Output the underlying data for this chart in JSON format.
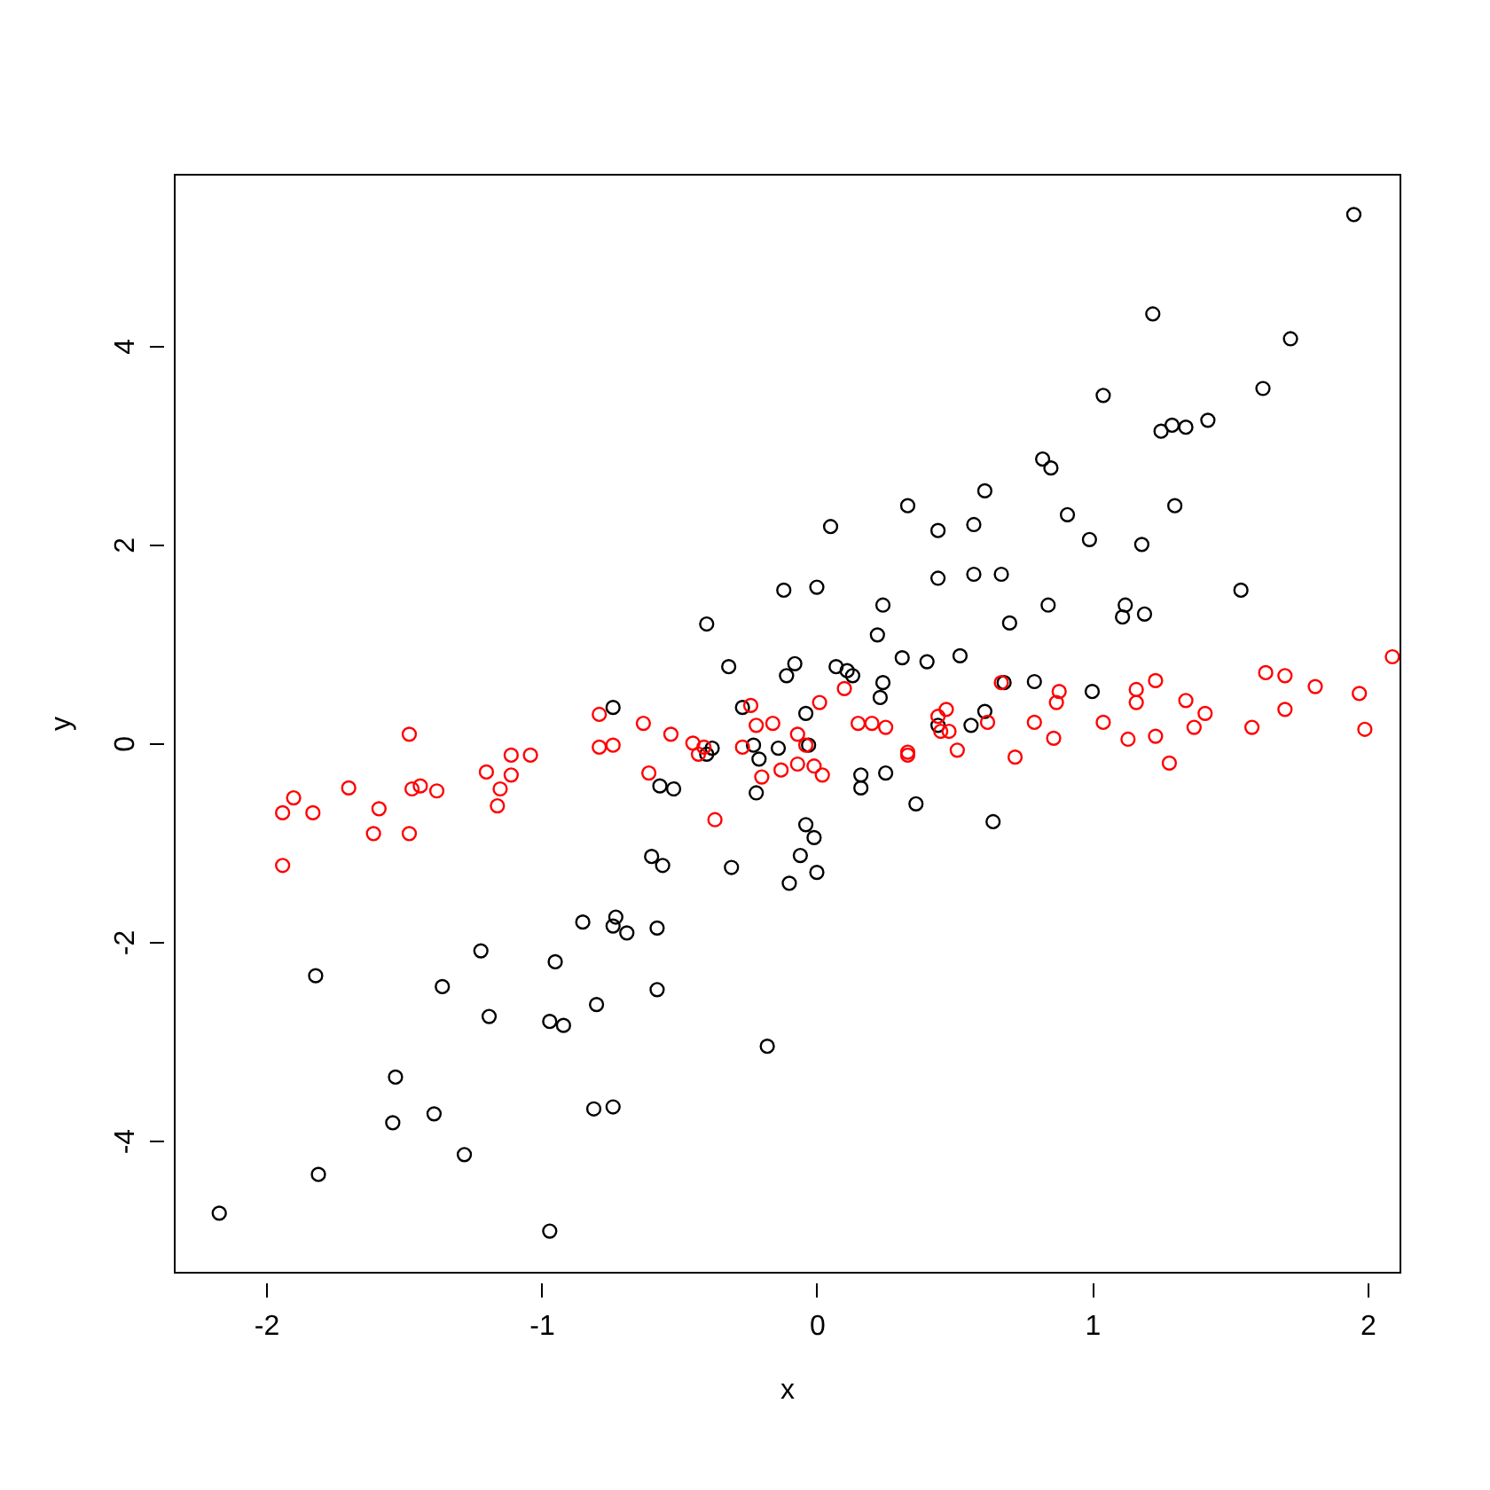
{
  "chart_data": {
    "type": "scatter",
    "xlabel": "x",
    "ylabel": "y",
    "xlim": [
      -2.335,
      2.116
    ],
    "ylim": [
      -5.32,
      5.73
    ],
    "xticks": [
      -2,
      -1,
      0,
      1,
      2
    ],
    "yticks": [
      -4,
      -2,
      0,
      2,
      4
    ],
    "grid": false,
    "marker": "circle",
    "series": [
      {
        "color": "#000000",
        "x": [
          -2.17,
          -1.81,
          -1.82,
          -1.53,
          -1.54,
          -1.39,
          -1.36,
          -1.28,
          -1.22,
          -1.19,
          -0.97,
          -0.95,
          -0.97,
          -0.92,
          -0.85,
          -0.8,
          -0.81,
          -0.74,
          -0.74,
          -0.74,
          -0.73,
          -0.69,
          -0.6,
          -0.58,
          -0.58,
          -0.57,
          -0.56,
          -0.52,
          -0.4,
          -0.4,
          -0.38,
          -0.32,
          -0.31,
          -0.27,
          -0.23,
          -0.21,
          -0.22,
          -0.18,
          -0.14,
          -0.11,
          -0.12,
          -0.1,
          -0.08,
          -0.06,
          -0.04,
          -0.04,
          -0.01,
          0.0,
          0.0,
          -0.03,
          0.05,
          0.07,
          0.11,
          0.13,
          0.16,
          0.16,
          0.22,
          0.24,
          0.24,
          0.23,
          0.25,
          0.31,
          0.33,
          0.36,
          0.4,
          0.44,
          0.44,
          0.44,
          0.52,
          0.56,
          0.57,
          0.57,
          0.61,
          0.61,
          0.64,
          0.67,
          0.68,
          0.7,
          0.79,
          0.82,
          0.85,
          0.84,
          0.91,
          0.99,
          1.0,
          1.04,
          1.11,
          1.12,
          1.18,
          1.19,
          1.22,
          1.25,
          1.29,
          1.3,
          1.34,
          1.42,
          1.54,
          1.62,
          1.72,
          1.95
        ],
        "values": [
          -4.73,
          -4.34,
          -2.34,
          -3.36,
          -3.82,
          -3.73,
          -2.45,
          -4.14,
          -2.09,
          -2.75,
          -2.8,
          -2.2,
          -4.91,
          -2.84,
          -1.8,
          -2.63,
          -3.68,
          -3.66,
          0.36,
          -1.84,
          -1.75,
          -1.91,
          -1.14,
          -2.48,
          -1.86,
          -0.43,
          -1.23,
          -0.46,
          1.2,
          -0.11,
          -0.05,
          0.77,
          -1.25,
          0.36,
          -0.02,
          -0.16,
          -0.5,
          -3.05,
          -0.05,
          0.68,
          1.54,
          -1.41,
          0.8,
          -1.13,
          0.3,
          -0.82,
          -0.95,
          1.57,
          -1.3,
          -0.02,
          2.18,
          0.77,
          0.73,
          0.68,
          -0.32,
          -0.45,
          1.09,
          1.39,
          0.61,
          0.46,
          -0.3,
          0.86,
          2.39,
          -0.61,
          0.82,
          2.14,
          1.66,
          0.18,
          0.88,
          0.18,
          2.2,
          1.7,
          2.54,
          0.32,
          -0.79,
          1.7,
          0.61,
          1.21,
          0.62,
          2.86,
          2.77,
          1.39,
          2.3,
          2.05,
          0.52,
          3.5,
          1.27,
          1.39,
          2.0,
          1.3,
          4.32,
          3.14,
          3.2,
          2.39,
          3.18,
          3.25,
          1.54,
          3.57,
          4.07,
          5.32
        ]
      },
      {
        "color": "#ff0000",
        "x": [
          -1.94,
          -1.9,
          -1.94,
          -1.83,
          -1.7,
          -1.61,
          -1.59,
          -1.48,
          -1.48,
          -1.47,
          -1.44,
          -1.38,
          -1.2,
          -1.15,
          -1.16,
          -1.11,
          -1.11,
          -1.04,
          -0.79,
          -0.79,
          -0.74,
          -0.63,
          -0.61,
          -0.53,
          -0.45,
          -0.43,
          -0.41,
          -0.37,
          -0.27,
          -0.24,
          -0.22,
          -0.2,
          -0.16,
          -0.13,
          -0.07,
          -0.07,
          -0.04,
          -0.01,
          0.01,
          0.02,
          0.1,
          0.15,
          0.2,
          0.25,
          0.33,
          0.33,
          0.44,
          0.45,
          0.47,
          0.48,
          0.51,
          0.62,
          0.67,
          0.72,
          0.79,
          0.86,
          0.88,
          0.87,
          1.04,
          1.13,
          1.16,
          1.16,
          1.23,
          1.23,
          1.28,
          1.34,
          1.37,
          1.41,
          1.58,
          1.63,
          1.7,
          1.7,
          1.81,
          1.97,
          1.99,
          2.09
        ],
        "values": [
          -0.7,
          -0.55,
          -1.23,
          -0.7,
          -0.45,
          -0.91,
          -0.66,
          0.09,
          -0.91,
          -0.46,
          -0.43,
          -0.48,
          -0.29,
          -0.46,
          -0.63,
          -0.12,
          -0.32,
          -0.12,
          0.29,
          -0.04,
          -0.02,
          0.2,
          -0.3,
          0.09,
          0.0,
          -0.11,
          -0.04,
          -0.77,
          -0.04,
          0.38,
          0.18,
          -0.34,
          0.2,
          -0.27,
          0.09,
          -0.21,
          -0.02,
          -0.23,
          0.41,
          -0.32,
          0.55,
          0.2,
          0.2,
          0.16,
          -0.09,
          -0.12,
          0.27,
          0.12,
          0.34,
          0.12,
          -0.07,
          0.21,
          0.61,
          -0.14,
          0.21,
          0.05,
          0.52,
          0.41,
          0.21,
          0.04,
          0.54,
          0.41,
          0.07,
          0.63,
          -0.2,
          0.43,
          0.16,
          0.3,
          0.16,
          0.71,
          0.34,
          0.68,
          0.57,
          0.5,
          0.14,
          0.87
        ]
      }
    ]
  }
}
